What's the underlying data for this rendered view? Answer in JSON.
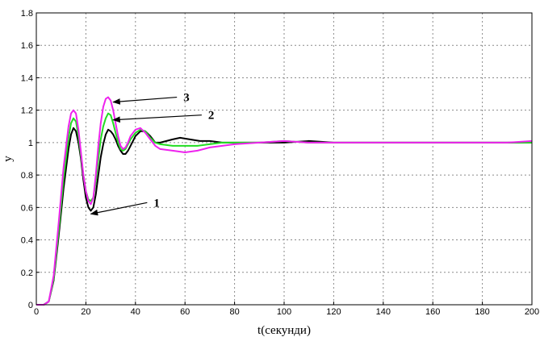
{
  "chart_data": {
    "type": "line",
    "xlabel": "t(секунди)",
    "ylabel": "y",
    "xlim": [
      0,
      200
    ],
    "ylim": [
      0,
      1.8
    ],
    "xticks": [
      0,
      20,
      40,
      60,
      80,
      100,
      120,
      140,
      160,
      180,
      200
    ],
    "yticks": [
      0,
      0.2,
      0.4,
      0.6,
      0.8,
      1,
      1.2,
      1.4,
      1.6,
      1.8
    ],
    "ytick_labels": [
      "0",
      "0.2",
      "0.4",
      "0.6",
      "0.8",
      "1",
      "1.2",
      "1.4",
      "1.6",
      "1.8"
    ],
    "grid": true,
    "series": [
      {
        "color": "#000000",
        "x": [
          0,
          3,
          5,
          7,
          9,
          11,
          13,
          14,
          15,
          16,
          17,
          18,
          19,
          20,
          21,
          22,
          23,
          24,
          25,
          26,
          27,
          28,
          29,
          30,
          31,
          32,
          33,
          34,
          35,
          36,
          37,
          38,
          40,
          42,
          44,
          46,
          48,
          50,
          55,
          58,
          62,
          66,
          70,
          75,
          80,
          90,
          100,
          110,
          120,
          130,
          140,
          150,
          160,
          170,
          180,
          190,
          200
        ],
        "y": [
          0,
          0,
          0.02,
          0.15,
          0.42,
          0.72,
          0.96,
          1.05,
          1.09,
          1.07,
          1.0,
          0.9,
          0.77,
          0.66,
          0.6,
          0.58,
          0.6,
          0.68,
          0.8,
          0.91,
          0.99,
          1.05,
          1.08,
          1.07,
          1.05,
          1.02,
          0.98,
          0.95,
          0.93,
          0.93,
          0.95,
          0.98,
          1.04,
          1.07,
          1.07,
          1.04,
          1.0,
          1.0,
          1.02,
          1.03,
          1.02,
          1.01,
          1.01,
          1.0,
          1.0,
          1.0,
          1.0,
          1.01,
          1.0,
          1.0,
          1.0,
          1.0,
          1.0,
          1.0,
          1.0,
          1.0,
          1.0
        ]
      },
      {
        "color": "#22dd22",
        "x": [
          0,
          3,
          5,
          7,
          9,
          11,
          13,
          14,
          15,
          16,
          17,
          18,
          19,
          20,
          21,
          22,
          23,
          24,
          25,
          26,
          27,
          28,
          29,
          30,
          31,
          32,
          33,
          34,
          35,
          36,
          37,
          38,
          40,
          42,
          44,
          46,
          48,
          50,
          55,
          60,
          65,
          70,
          75,
          80,
          90,
          100,
          110,
          120,
          130,
          140,
          150,
          160,
          170,
          180,
          190,
          200
        ],
        "y": [
          0,
          0,
          0.02,
          0.16,
          0.45,
          0.78,
          1.03,
          1.12,
          1.15,
          1.13,
          1.04,
          0.92,
          0.8,
          0.7,
          0.65,
          0.64,
          0.66,
          0.76,
          0.9,
          1.02,
          1.1,
          1.15,
          1.18,
          1.17,
          1.12,
          1.06,
          1.0,
          0.96,
          0.95,
          0.96,
          0.99,
          1.02,
          1.06,
          1.08,
          1.07,
          1.03,
          1.0,
          0.99,
          0.98,
          0.98,
          0.98,
          0.99,
          1.0,
          1.0,
          1.0,
          1.01,
          1.0,
          1.0,
          1.0,
          1.0,
          1.0,
          1.0,
          1.0,
          1.0,
          1.0,
          1.0
        ]
      },
      {
        "color": "#ee22ee",
        "x": [
          0,
          3,
          5,
          7,
          9,
          11,
          13,
          14,
          15,
          16,
          17,
          18,
          19,
          20,
          21,
          22,
          23,
          24,
          25,
          26,
          27,
          28,
          29,
          30,
          31,
          32,
          33,
          34,
          35,
          36,
          37,
          38,
          40,
          42,
          44,
          46,
          48,
          50,
          55,
          60,
          65,
          70,
          75,
          80,
          90,
          100,
          110,
          120,
          130,
          140,
          150,
          160,
          170,
          180,
          190,
          200
        ],
        "y": [
          0,
          0,
          0.02,
          0.18,
          0.5,
          0.85,
          1.1,
          1.18,
          1.2,
          1.18,
          1.08,
          0.94,
          0.8,
          0.7,
          0.64,
          0.62,
          0.66,
          0.8,
          0.98,
          1.12,
          1.22,
          1.27,
          1.28,
          1.26,
          1.2,
          1.12,
          1.04,
          0.98,
          0.96,
          0.97,
          1.0,
          1.04,
          1.08,
          1.09,
          1.06,
          1.02,
          0.98,
          0.96,
          0.95,
          0.94,
          0.95,
          0.97,
          0.98,
          0.99,
          1.0,
          1.01,
          1.0,
          1.0,
          1.0,
          1.0,
          1.0,
          1.0,
          1.0,
          1.0,
          1.0,
          1.01
        ]
      }
    ],
    "annotations": [
      {
        "text": "1",
        "tip": [
          22,
          0.56
        ],
        "label": [
          48,
          0.63
        ]
      },
      {
        "text": "2",
        "tip": [
          31,
          1.14
        ],
        "label": [
          70,
          1.17
        ]
      },
      {
        "text": "3",
        "tip": [
          31,
          1.25
        ],
        "label": [
          60,
          1.28
        ]
      }
    ]
  }
}
